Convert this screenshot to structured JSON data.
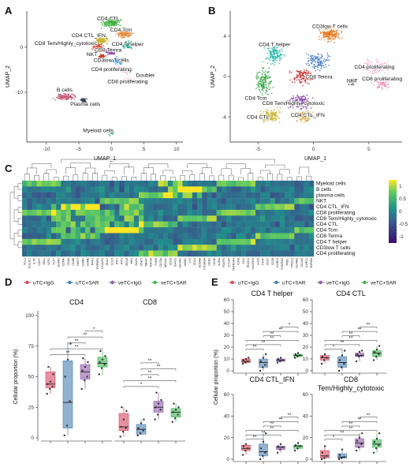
{
  "panels": {
    "A": "A",
    "B": "B",
    "C": "C",
    "D": "D",
    "E": "E"
  },
  "colors": {
    "uTC+IgG": "#d9485f",
    "uTC+SAR": "#4a7fb0",
    "veTC+IgG": "#8e5aa8",
    "veTC+SAR": "#3cb551",
    "heat_low": "#3b0f70",
    "heat_mid": "#21918c",
    "heat_high": "#fde725"
  },
  "umapA": {
    "xlabel": "UMAP_1",
    "ylabel": "UMAP_2",
    "xticks": [
      -10,
      -5,
      0,
      5,
      10
    ],
    "yticks": [
      0,
      -10
    ],
    "xlim": [
      -13,
      11
    ],
    "ylim": [
      -21,
      8
    ],
    "labels": [
      {
        "text": "CD4 CTL",
        "x": -0.5,
        "y": 6.0
      },
      {
        "text": "CD4 Tcm",
        "x": 1.5,
        "y": 3.5
      },
      {
        "text": "CD4 CTL_IFN",
        "x": -3.5,
        "y": 2.2
      },
      {
        "text": "CD8 Tem/Highly_cytotoxic",
        "x": -7.0,
        "y": 0.5
      },
      {
        "text": "CD4 T helper",
        "x": 2.5,
        "y": 0.3
      },
      {
        "text": "CD8 Temra",
        "x": -0.5,
        "y": -1.0
      },
      {
        "text": "NKT",
        "x": -3.0,
        "y": -2.0
      },
      {
        "text": "CD3low T cells",
        "x": 0.0,
        "y": -3.3
      },
      {
        "text": "CD4 proliferating",
        "x": 0.0,
        "y": -5.3
      },
      {
        "text": "Doublet",
        "x": 5.2,
        "y": -6.6
      },
      {
        "text": "CD8 proliferating",
        "x": 2.5,
        "y": -8.0
      },
      {
        "text": "B cells",
        "x": -7.2,
        "y": -9.8
      },
      {
        "text": "Plasma cells",
        "x": -4.0,
        "y": -13.0
      },
      {
        "text": "Myeloid cells",
        "x": -2.0,
        "y": -18.8
      }
    ]
  },
  "umapB": {
    "xlabel": "UMAP_1",
    "ylabel": "UMAP_2",
    "xticks": [
      -5,
      0,
      5
    ],
    "yticks": [
      4,
      0,
      -4
    ],
    "xlim": [
      -7.5,
      8
    ],
    "ylim": [
      -6.5,
      6.5
    ],
    "labels": [
      {
        "text": "CD3low T cells",
        "x": 1.5,
        "y": 4.8
      },
      {
        "text": "CD4 T helper",
        "x": -3.5,
        "y": 3.0
      },
      {
        "text": "CD8 Temra",
        "x": 0.5,
        "y": -0.2
      },
      {
        "text": "NKT",
        "x": 3.5,
        "y": -0.6
      },
      {
        "text": "CD4 proliferating",
        "x": 5.5,
        "y": 0.8
      },
      {
        "text": "CD8 proliferating",
        "x": 6.2,
        "y": -0.4
      },
      {
        "text": "CD4 Tcm",
        "x": -5.2,
        "y": -2.3
      },
      {
        "text": "CD8 Tem/Highly_cytotoxic",
        "x": -1.8,
        "y": -2.8
      },
      {
        "text": "CD4 CTL",
        "x": -5.0,
        "y": -4.2
      },
      {
        "text": "CD4 CTL_IFN",
        "x": -0.5,
        "y": -4.0
      }
    ]
  },
  "heatmap": {
    "rows": [
      "Myeloid cells",
      "B cells",
      "plasma cells",
      "NKT",
      "CD4 CTL_IFN",
      "CD8 proliferating",
      "CD8 Tem/Highly_cytotoxic",
      "CD4 CTL",
      "CD4 Tcm",
      "CD8 Temra",
      "CD4 T helper",
      "CD3low T cells",
      "CD4 proliferating"
    ],
    "legend_ticks": [
      "1",
      "0.5",
      "0",
      "-0.5",
      "-1"
    ],
    "genes": [
      "XCL1",
      "CCL4L1",
      "IL7R",
      "CCR7",
      "SELL",
      "LEF1",
      "TCF7",
      "KLRB1",
      "GZMK",
      "CD8A",
      "CD8B",
      "NKG7",
      "GZMH",
      "GZMB",
      "PRF1",
      "FGFBP2",
      "CX3CR1",
      "GNLY",
      "CCL5",
      "IFIT1",
      "IFIT3",
      "ISG15",
      "MX1",
      "OAS1",
      "STAT1",
      "MKI67",
      "TOP2A",
      "TYMS",
      "CD79A",
      "MS4A1",
      "CD19",
      "IGHG1",
      "JCHAIN",
      "MZB1",
      "LYZ",
      "CD14",
      "S100A8",
      "FCGR3A",
      "CD3D",
      "CD3E",
      "IL2RA",
      "FOXP3",
      "CTLA4",
      "TNFRSF4",
      "ICOS",
      "CD4",
      "PDCD1",
      "HAVCR2",
      "LAG3",
      "TIGIT",
      "CD27",
      "CD28",
      "KLRD1",
      "FCER1G",
      "TRDC",
      "TRGC1",
      "NCAM1",
      "CD160",
      "KLRC1",
      "ZNF683"
    ]
  },
  "legend": {
    "items": [
      "uTC+IgG",
      "uTC+SAR",
      "veTC+IgG",
      "veTC+SAR"
    ]
  },
  "chart_data": [
    {
      "type": "box",
      "panel": "D",
      "titles": [
        "CD4",
        "CD8"
      ],
      "ylabel": "Cellular proportion (%)",
      "ylim": [
        0,
        100
      ],
      "yticks": [
        0,
        25,
        50,
        75,
        100
      ],
      "groups": [
        "uTC+IgG",
        "uTC+SAR",
        "veTC+IgG",
        "veTC+SAR"
      ],
      "series": [
        {
          "name": "CD4",
          "boxes": [
            {
              "group": "uTC+IgG",
              "min": 36,
              "q1": 41,
              "median": 44,
              "q3": 54,
              "max": 58,
              "points": [
                36,
                40,
                42,
                44,
                46,
                52,
                58
              ]
            },
            {
              "group": "uTC+SAR",
              "min": 2,
              "q1": 8,
              "median": 29,
              "q3": 63,
              "max": 77,
              "points": [
                2,
                10,
                30,
                50,
                64,
                77
              ]
            },
            {
              "group": "veTC+IgG",
              "min": 40,
              "q1": 48,
              "median": 54,
              "q3": 60,
              "max": 65,
              "points": [
                40,
                47,
                50,
                55,
                58,
                62,
                65
              ]
            },
            {
              "group": "veTC+SAR",
              "min": 52,
              "q1": 58,
              "median": 61,
              "q3": 66,
              "max": 71,
              "points": [
                52,
                57,
                60,
                62,
                64,
                67,
                71
              ]
            }
          ]
        },
        {
          "name": "CD8",
          "boxes": [
            {
              "group": "uTC+IgG",
              "min": 1,
              "q1": 6,
              "median": 9,
              "q3": 20,
              "max": 25,
              "points": [
                1,
                5,
                8,
                9,
                15,
                22,
                25
              ]
            },
            {
              "group": "uTC+SAR",
              "min": 2,
              "q1": 3,
              "median": 7,
              "q3": 11,
              "max": 15,
              "points": [
                2,
                4,
                6,
                8,
                12,
                15
              ]
            },
            {
              "group": "veTC+IgG",
              "min": 15,
              "q1": 21,
              "median": 25,
              "q3": 30,
              "max": 37,
              "points": [
                15,
                19,
                23,
                25,
                28,
                31,
                37
              ]
            },
            {
              "group": "veTC+SAR",
              "min": 13,
              "q1": 17,
              "median": 21,
              "q3": 24,
              "max": 28,
              "points": [
                13,
                16,
                19,
                21,
                23,
                25,
                28
              ]
            }
          ]
        }
      ],
      "significance": [
        {
          "series": "CD4",
          "from": 0,
          "to": 2,
          "label": "**"
        },
        {
          "series": "CD4",
          "from": 0,
          "to": 3,
          "label": "**"
        },
        {
          "series": "CD4",
          "from": 1,
          "to": 2,
          "label": "**"
        },
        {
          "series": "CD4",
          "from": 1,
          "to": 3,
          "label": "**"
        },
        {
          "series": "CD4",
          "from": 2,
          "to": 3,
          "label": "*"
        },
        {
          "series": "CD8",
          "from": 0,
          "to": 2,
          "label": "*"
        },
        {
          "series": "CD8",
          "from": 0,
          "to": 3,
          "label": "**"
        },
        {
          "series": "CD8",
          "from": 1,
          "to": 2,
          "label": "**"
        },
        {
          "series": "CD8",
          "from": 1,
          "to": 3,
          "label": "**"
        },
        {
          "series": "CD8",
          "from": 1,
          "to": 2,
          "label": "**",
          "level": 2
        }
      ]
    },
    {
      "type": "box",
      "panel": "E",
      "ylabel": "Cellular proportion (%)",
      "groups": [
        "uTC+IgG",
        "uTC+SAR",
        "veTC+IgG",
        "veTC+SAR"
      ],
      "subplots": [
        {
          "title": "CD4 T helper",
          "ylim": [
            0,
            60
          ],
          "yticks": [
            0,
            10,
            20,
            30,
            40,
            50,
            60
          ],
          "boxes": [
            {
              "min": 6,
              "q1": 7,
              "median": 8,
              "q3": 10,
              "max": 11,
              "points": [
                6,
                7,
                8,
                9,
                10,
                11
              ]
            },
            {
              "min": 0,
              "q1": 3,
              "median": 7,
              "q3": 10,
              "max": 14,
              "points": [
                0,
                3,
                5,
                8,
                11,
                14
              ]
            },
            {
              "min": 7,
              "q1": 8,
              "median": 9,
              "q3": 10,
              "max": 11,
              "points": [
                7,
                8,
                9,
                10,
                11
              ]
            },
            {
              "min": 11,
              "q1": 12,
              "median": 13,
              "q3": 14,
              "max": 15,
              "points": [
                11,
                12,
                13,
                14,
                15
              ]
            }
          ],
          "significance": [
            {
              "from": 0,
              "to": 1,
              "label": "**"
            },
            {
              "from": 0,
              "to": 2,
              "label": "**"
            },
            {
              "from": 0,
              "to": 3,
              "label": "**"
            },
            {
              "from": 1,
              "to": 2,
              "label": "**"
            },
            {
              "from": 1,
              "to": 3,
              "label": "**"
            },
            {
              "from": 2,
              "to": 3,
              "label": "*"
            }
          ]
        },
        {
          "title": "CD4 CTL",
          "ylim": [
            0,
            60
          ],
          "yticks": [
            0,
            10,
            20,
            30,
            40,
            50,
            60
          ],
          "boxes": [
            {
              "min": 6,
              "q1": 9,
              "median": 11,
              "q3": 13,
              "max": 14,
              "points": [
                6,
                9,
                11,
                12,
                14
              ]
            },
            {
              "min": 0,
              "q1": 3,
              "median": 7,
              "q3": 12,
              "max": 17,
              "points": [
                0,
                3,
                6,
                9,
                13,
                17
              ]
            },
            {
              "min": 8,
              "q1": 12,
              "median": 13,
              "q3": 15,
              "max": 17,
              "points": [
                8,
                12,
                13,
                14,
                16,
                17
              ]
            },
            {
              "min": 9,
              "q1": 12,
              "median": 15,
              "q3": 17,
              "max": 21,
              "points": [
                9,
                12,
                14,
                16,
                18,
                21
              ]
            }
          ],
          "significance": [
            {
              "from": 0,
              "to": 1,
              "label": "*"
            },
            {
              "from": 0,
              "to": 2,
              "label": "**"
            },
            {
              "from": 0,
              "to": 3,
              "label": "**"
            },
            {
              "from": 1,
              "to": 2,
              "label": "**"
            },
            {
              "from": 1,
              "to": 3,
              "label": "**"
            },
            {
              "from": 2,
              "to": 3,
              "label": "**"
            }
          ]
        },
        {
          "title": "CD4 CTL_IFN",
          "ylim": [
            0,
            60
          ],
          "yticks": [
            0,
            20,
            40,
            60
          ],
          "boxes": [
            {
              "min": 4,
              "q1": 8,
              "median": 10,
              "q3": 13,
              "max": 14,
              "points": [
                4,
                8,
                10,
                12,
                14
              ]
            },
            {
              "min": 0,
              "q1": 3,
              "median": 7,
              "q3": 14,
              "max": 24,
              "points": [
                0,
                3,
                6,
                10,
                16,
                24
              ]
            },
            {
              "min": 6,
              "q1": 9,
              "median": 11,
              "q3": 12,
              "max": 14,
              "points": [
                6,
                9,
                11,
                12,
                14
              ]
            },
            {
              "min": 8,
              "q1": 10,
              "median": 12,
              "q3": 13,
              "max": 15,
              "points": [
                8,
                10,
                12,
                13,
                15
              ]
            }
          ],
          "significance": [
            {
              "from": 0,
              "to": 1,
              "label": "**"
            },
            {
              "from": 0,
              "to": 2,
              "label": "**"
            },
            {
              "from": 0,
              "to": 3,
              "label": "**"
            },
            {
              "from": 1,
              "to": 2,
              "label": "**"
            },
            {
              "from": 1,
              "to": 3,
              "label": "**"
            },
            {
              "from": 2,
              "to": 3,
              "label": "**"
            }
          ]
        },
        {
          "title": "CD8\nTem/Highly_cytotoxic",
          "ylim": [
            0,
            60
          ],
          "yticks": [
            0,
            20,
            40,
            60
          ],
          "boxes": [
            {
              "min": 0,
              "q1": 1,
              "median": 3,
              "q3": 8,
              "max": 12,
              "points": [
                0,
                1,
                3,
                6,
                12
              ]
            },
            {
              "min": 0,
              "q1": 1,
              "median": 2,
              "q3": 5,
              "max": 9,
              "points": [
                0,
                1,
                2,
                4,
                9
              ]
            },
            {
              "min": 8,
              "q1": 11,
              "median": 15,
              "q3": 19,
              "max": 24,
              "points": [
                8,
                11,
                14,
                17,
                20,
                24
              ]
            },
            {
              "min": 6,
              "q1": 11,
              "median": 14,
              "q3": 18,
              "max": 24,
              "points": [
                6,
                10,
                13,
                16,
                19,
                24
              ]
            }
          ],
          "significance": [
            {
              "from": 0,
              "to": 1,
              "label": "*"
            },
            {
              "from": 0,
              "to": 2,
              "label": "**"
            },
            {
              "from": 0,
              "to": 3,
              "label": "**"
            },
            {
              "from": 1,
              "to": 2,
              "label": "**"
            },
            {
              "from": 1,
              "to": 3,
              "label": "**"
            },
            {
              "from": 2,
              "to": 3,
              "label": "**"
            }
          ]
        }
      ]
    }
  ]
}
